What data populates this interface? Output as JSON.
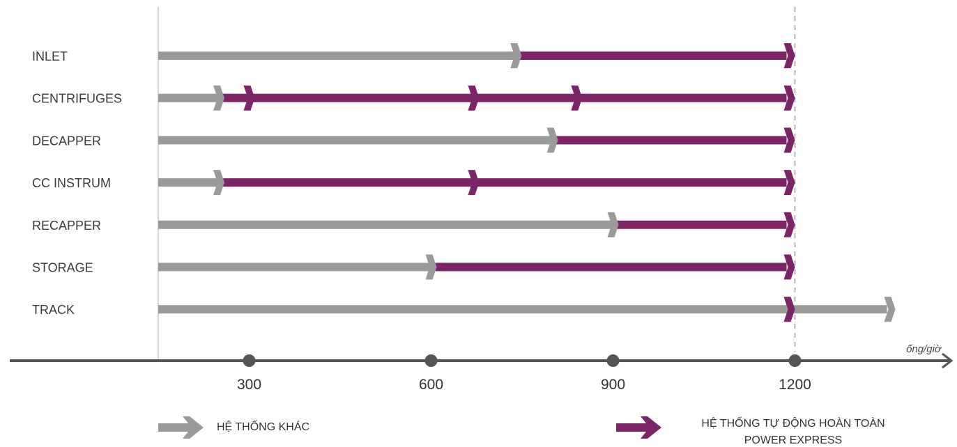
{
  "chart_data": {
    "type": "bar",
    "categories": [
      "INLET",
      "CENTRIFUGES",
      "DECAPPER",
      "CC INSTRUM",
      "RECAPPER",
      "STORAGE",
      "TRACK"
    ],
    "series": [
      {
        "name": "HỆ THỐNG KHÁC",
        "values": [
          740,
          250,
          800,
          250,
          900,
          600,
          1200
        ]
      },
      {
        "name": "HỆ THỐNG TỰ ĐỘNG HOÀN TOÀN POWER EXPRESS",
        "values": [
          1200,
          1200,
          1200,
          1200,
          1200,
          1200,
          1200
        ]
      }
    ],
    "other_track_extends_to": 1400,
    "chevrons": [
      [
        740
      ],
      [
        250,
        300,
        670,
        840
      ],
      [
        800
      ],
      [
        250,
        670
      ],
      [
        900
      ],
      [
        600
      ],
      []
    ],
    "x_ticks": [
      300,
      600,
      900,
      1200
    ],
    "x_unit_label": "ống/giờ",
    "reference_line": 1200,
    "xlim": [
      150,
      1400
    ],
    "colors": {
      "other": "#9a9a9a",
      "power_express": "#7d2368",
      "axis": "#555555"
    },
    "legend": {
      "other_label": "HỆ THỐNG KHÁC",
      "power_label_line1": "HỆ THỐNG TỰ ĐỘNG HOÀN TOÀN",
      "power_label_line2": "POWER EXPRESS",
      "position": "bottom"
    }
  }
}
